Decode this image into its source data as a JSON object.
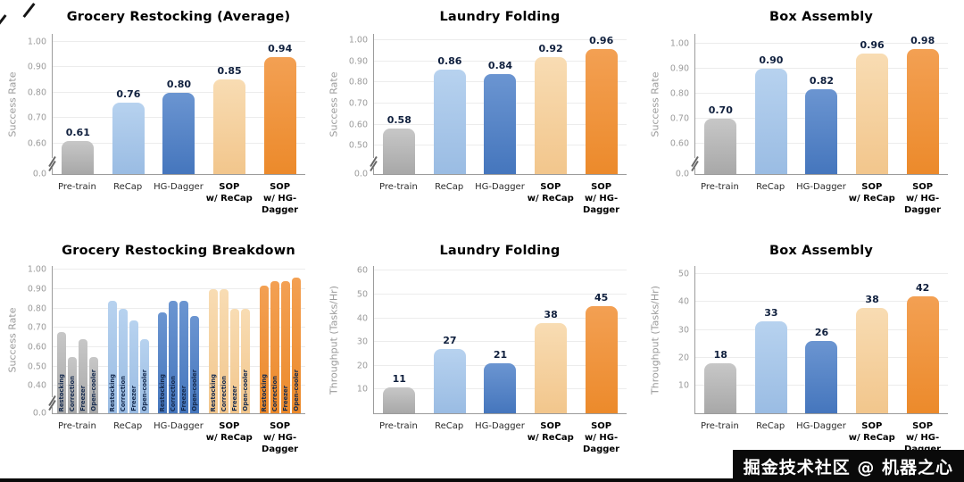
{
  "palette": {
    "gray": {
      "top": "#c7c7c7",
      "bottom": "#a8a8a8"
    },
    "lightblue": {
      "top": "#b7d2ef",
      "bottom": "#9abce3"
    },
    "blue": {
      "top": "#6b95d1",
      "bottom": "#4576bd"
    },
    "tan": {
      "top": "#f8dcb3",
      "bottom": "#f2c68c"
    },
    "orange": {
      "top": "#f3a053",
      "bottom": "#ec8a2b"
    }
  },
  "watermark": {
    "text": "掘金技术社区 @ 机器之心"
  },
  "chart_data": [
    {
      "type": "bar",
      "title": "Grocery Restocking (Average)",
      "ylabel": "Success Rate",
      "axis_break": true,
      "ymin": 0.55,
      "ymax": 1.03,
      "zero_label": "0.0",
      "yticks": [
        {
          "value": 0.6,
          "label": "0.60"
        },
        {
          "value": 0.7,
          "label": "0.70"
        },
        {
          "value": 0.8,
          "label": "0.80"
        },
        {
          "value": 0.9,
          "label": "0.90"
        },
        {
          "value": 1.0,
          "label": "1.00"
        }
      ],
      "groups": [
        {
          "label_lines": [
            "Pre-train"
          ],
          "bold": false,
          "bars": [
            {
              "value": 0.61,
              "label": "0.61",
              "color": "gray"
            }
          ]
        },
        {
          "label_lines": [
            "ReCap"
          ],
          "bold": false,
          "bars": [
            {
              "value": 0.76,
              "label": "0.76",
              "color": "lightblue"
            }
          ]
        },
        {
          "label_lines": [
            "HG-Dagger"
          ],
          "bold": false,
          "bars": [
            {
              "value": 0.8,
              "label": "0.80",
              "color": "blue"
            }
          ]
        },
        {
          "label_lines": [
            "SOP",
            "w/ ReCap"
          ],
          "bold": true,
          "bars": [
            {
              "value": 0.85,
              "label": "0.85",
              "color": "tan"
            }
          ]
        },
        {
          "label_lines": [
            "SOP",
            "w/ HG-Dagger"
          ],
          "bold": true,
          "bars": [
            {
              "value": 0.94,
              "label": "0.94",
              "color": "orange"
            }
          ]
        }
      ]
    },
    {
      "type": "bar",
      "title": "Laundry Folding",
      "ylabel": "Success Rate",
      "axis_break": true,
      "ymin": 0.45,
      "ymax": 1.03,
      "zero_label": "0.0",
      "yticks": [
        {
          "value": 0.5,
          "label": "0.50"
        },
        {
          "value": 0.6,
          "label": "0.60"
        },
        {
          "value": 0.7,
          "label": "0.70"
        },
        {
          "value": 0.8,
          "label": "0.80"
        },
        {
          "value": 0.9,
          "label": "0.90"
        },
        {
          "value": 1.0,
          "label": "1.00"
        }
      ],
      "groups": [
        {
          "label_lines": [
            "Pre-train"
          ],
          "bold": false,
          "bars": [
            {
              "value": 0.58,
              "label": "0.58",
              "color": "gray"
            }
          ]
        },
        {
          "label_lines": [
            "ReCap"
          ],
          "bold": false,
          "bars": [
            {
              "value": 0.86,
              "label": "0.86",
              "color": "lightblue"
            }
          ]
        },
        {
          "label_lines": [
            "HG-Dagger"
          ],
          "bold": false,
          "bars": [
            {
              "value": 0.84,
              "label": "0.84",
              "color": "blue"
            }
          ]
        },
        {
          "label_lines": [
            "SOP",
            "w/ ReCap"
          ],
          "bold": true,
          "bars": [
            {
              "value": 0.92,
              "label": "0.92",
              "color": "tan"
            }
          ]
        },
        {
          "label_lines": [
            "SOP",
            "w/ HG-Dagger"
          ],
          "bold": true,
          "bars": [
            {
              "value": 0.96,
              "label": "0.96",
              "color": "orange"
            }
          ]
        }
      ]
    },
    {
      "type": "bar",
      "title": "Box Assembly",
      "ylabel": "Success Rate",
      "axis_break": true,
      "ymin": 0.55,
      "ymax": 1.04,
      "zero_label": "0.0",
      "yticks": [
        {
          "value": 0.6,
          "label": "0.60"
        },
        {
          "value": 0.7,
          "label": "0.70"
        },
        {
          "value": 0.8,
          "label": "0.80"
        },
        {
          "value": 0.9,
          "label": "0.90"
        },
        {
          "value": 1.0,
          "label": "1.00"
        }
      ],
      "groups": [
        {
          "label_lines": [
            "Pre-train"
          ],
          "bold": false,
          "bars": [
            {
              "value": 0.7,
              "label": "0.70",
              "color": "gray"
            }
          ]
        },
        {
          "label_lines": [
            "ReCap"
          ],
          "bold": false,
          "bars": [
            {
              "value": 0.9,
              "label": "0.90",
              "color": "lightblue"
            }
          ]
        },
        {
          "label_lines": [
            "HG-Dagger"
          ],
          "bold": false,
          "bars": [
            {
              "value": 0.82,
              "label": "0.82",
              "color": "blue"
            }
          ]
        },
        {
          "label_lines": [
            "SOP",
            "w/ ReCap"
          ],
          "bold": true,
          "bars": [
            {
              "value": 0.96,
              "label": "0.96",
              "color": "tan"
            }
          ]
        },
        {
          "label_lines": [
            "SOP",
            "w/ HG-Dagger"
          ],
          "bold": true,
          "bars": [
            {
              "value": 0.98,
              "label": "0.98",
              "color": "orange"
            }
          ]
        }
      ]
    },
    {
      "type": "bar",
      "title": "Grocery Restocking Breakdown",
      "ylabel": "Success Rate",
      "axis_break": true,
      "ymin": 0.35,
      "ymax": 1.02,
      "zero_label": "0.0",
      "yticks": [
        {
          "value": 0.4,
          "label": "0.40"
        },
        {
          "value": 0.5,
          "label": "0.50"
        },
        {
          "value": 0.6,
          "label": "0.60"
        },
        {
          "value": 0.7,
          "label": "0.70"
        },
        {
          "value": 0.8,
          "label": "0.80"
        },
        {
          "value": 0.9,
          "label": "0.90"
        },
        {
          "value": 1.0,
          "label": "1.00"
        }
      ],
      "groups": [
        {
          "label_lines": [
            "Pre-train"
          ],
          "bold": false,
          "bars": [
            {
              "value": 0.68,
              "sublabel": "Restocking",
              "color": "gray"
            },
            {
              "value": 0.55,
              "sublabel": "Correction",
              "color": "gray"
            },
            {
              "value": 0.64,
              "sublabel": "Freezer",
              "color": "gray"
            },
            {
              "value": 0.55,
              "sublabel": "Open-cooler",
              "color": "gray"
            }
          ]
        },
        {
          "label_lines": [
            "ReCap"
          ],
          "bold": false,
          "bars": [
            {
              "value": 0.84,
              "sublabel": "Restocking",
              "color": "lightblue"
            },
            {
              "value": 0.8,
              "sublabel": "Correction",
              "color": "lightblue"
            },
            {
              "value": 0.74,
              "sublabel": "Freezer",
              "color": "lightblue"
            },
            {
              "value": 0.64,
              "sublabel": "Open-cooler",
              "color": "lightblue"
            }
          ]
        },
        {
          "label_lines": [
            "HG-Dagger"
          ],
          "bold": false,
          "bars": [
            {
              "value": 0.78,
              "sublabel": "Restocking",
              "color": "blue"
            },
            {
              "value": 0.84,
              "sublabel": "Correction",
              "color": "blue"
            },
            {
              "value": 0.84,
              "sublabel": "Freezer",
              "color": "blue"
            },
            {
              "value": 0.76,
              "sublabel": "Open-cooler",
              "color": "blue"
            }
          ]
        },
        {
          "label_lines": [
            "SOP",
            "w/ ReCap"
          ],
          "bold": true,
          "bars": [
            {
              "value": 0.9,
              "sublabel": "Restocking",
              "color": "tan"
            },
            {
              "value": 0.9,
              "sublabel": "Correction",
              "color": "tan"
            },
            {
              "value": 0.8,
              "sublabel": "Freezer",
              "color": "tan"
            },
            {
              "value": 0.8,
              "sublabel": "Open-cooler",
              "color": "tan"
            }
          ]
        },
        {
          "label_lines": [
            "SOP",
            "w/ HG-Dagger"
          ],
          "bold": true,
          "bars": [
            {
              "value": 0.92,
              "sublabel": "Restocking",
              "color": "orange"
            },
            {
              "value": 0.94,
              "sublabel": "Correction",
              "color": "orange"
            },
            {
              "value": 0.94,
              "sublabel": "Freezer",
              "color": "orange"
            },
            {
              "value": 0.96,
              "sublabel": "Open-cooler",
              "color": "orange"
            }
          ]
        }
      ]
    },
    {
      "type": "bar",
      "title": "Laundry Folding",
      "ylabel": "Throughput (Tasks/Hr)",
      "axis_break": false,
      "ymin": 0,
      "ymax": 62,
      "zero_label": null,
      "yticks": [
        {
          "value": 10,
          "label": "10"
        },
        {
          "value": 20,
          "label": "20"
        },
        {
          "value": 30,
          "label": "30"
        },
        {
          "value": 40,
          "label": "40"
        },
        {
          "value": 50,
          "label": "50"
        },
        {
          "value": 60,
          "label": "60"
        }
      ],
      "groups": [
        {
          "label_lines": [
            "Pre-train"
          ],
          "bold": false,
          "bars": [
            {
              "value": 11,
              "label": "11",
              "color": "gray"
            }
          ]
        },
        {
          "label_lines": [
            "ReCap"
          ],
          "bold": false,
          "bars": [
            {
              "value": 27,
              "label": "27",
              "color": "lightblue"
            }
          ]
        },
        {
          "label_lines": [
            "HG-Dagger"
          ],
          "bold": false,
          "bars": [
            {
              "value": 21,
              "label": "21",
              "color": "blue"
            }
          ]
        },
        {
          "label_lines": [
            "SOP",
            "w/ ReCap"
          ],
          "bold": true,
          "bars": [
            {
              "value": 38,
              "label": "38",
              "color": "tan"
            }
          ]
        },
        {
          "label_lines": [
            "SOP",
            "w/ HG-Dagger"
          ],
          "bold": true,
          "bars": [
            {
              "value": 45,
              "label": "45",
              "color": "orange"
            }
          ]
        }
      ]
    },
    {
      "type": "bar",
      "title": "Box Assembly",
      "ylabel": "Throughput (Tasks/Hr)",
      "axis_break": false,
      "ymin": 0,
      "ymax": 53,
      "zero_label": null,
      "yticks": [
        {
          "value": 10,
          "label": "10"
        },
        {
          "value": 20,
          "label": "20"
        },
        {
          "value": 30,
          "label": "30"
        },
        {
          "value": 40,
          "label": "40"
        },
        {
          "value": 50,
          "label": "50"
        }
      ],
      "groups": [
        {
          "label_lines": [
            "Pre-train"
          ],
          "bold": false,
          "bars": [
            {
              "value": 18,
              "label": "18",
              "color": "gray"
            }
          ]
        },
        {
          "label_lines": [
            "ReCap"
          ],
          "bold": false,
          "bars": [
            {
              "value": 33,
              "label": "33",
              "color": "lightblue"
            }
          ]
        },
        {
          "label_lines": [
            "HG-Dagger"
          ],
          "bold": false,
          "bars": [
            {
              "value": 26,
              "label": "26",
              "color": "blue"
            }
          ]
        },
        {
          "label_lines": [
            "SOP",
            "w/ ReCap"
          ],
          "bold": true,
          "bars": [
            {
              "value": 38,
              "label": "38",
              "color": "tan"
            }
          ]
        },
        {
          "label_lines": [
            "SOP",
            "w/ HG-Dagger"
          ],
          "bold": true,
          "bars": [
            {
              "value": 42,
              "label": "42",
              "color": "orange"
            }
          ]
        }
      ]
    }
  ]
}
